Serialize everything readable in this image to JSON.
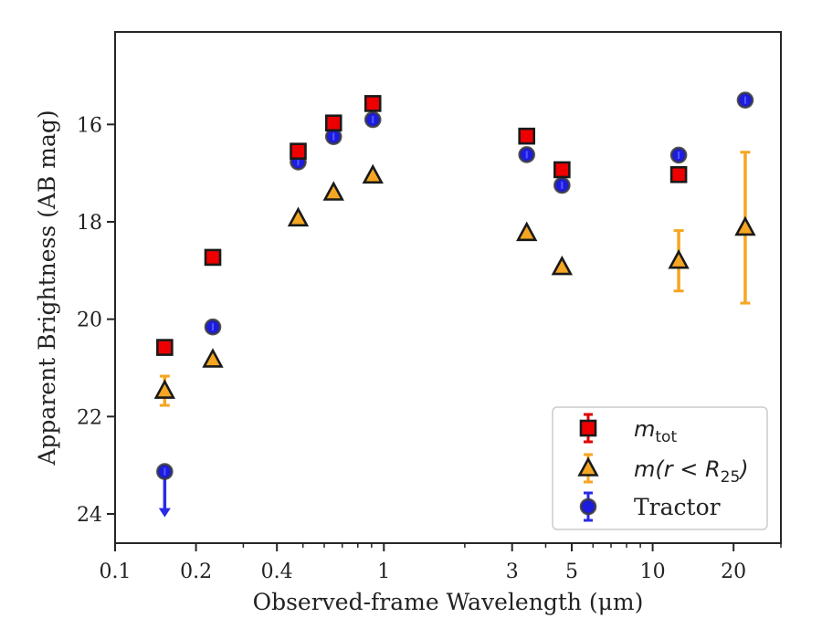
{
  "chart_data": {
    "type": "scatter",
    "xlabel": "Observed-frame Wavelength (μm)",
    "ylabel": "Apparent Brightness (AB mag)",
    "x_scale": "log",
    "y_inverted": true,
    "xlim": [
      0.1,
      30
    ],
    "ylim": [
      24.6,
      14.1
    ],
    "x_ticks": [
      {
        "value": 0.1,
        "label": "0.1"
      },
      {
        "value": 0.2,
        "label": "0.2"
      },
      {
        "value": 0.4,
        "label": "0.4"
      },
      {
        "value": 1,
        "label": "1"
      },
      {
        "value": 3,
        "label": "3"
      },
      {
        "value": 5,
        "label": "5"
      },
      {
        "value": 10,
        "label": "10"
      },
      {
        "value": 20,
        "label": "20"
      }
    ],
    "y_ticks": [
      {
        "value": 16,
        "label": "16"
      },
      {
        "value": 18,
        "label": "18"
      },
      {
        "value": 20,
        "label": "20"
      },
      {
        "value": 22,
        "label": "22"
      },
      {
        "value": 24,
        "label": "24"
      }
    ],
    "grid": false,
    "legend_position": "bottom-right",
    "series": [
      {
        "name": "m_tot",
        "legend_main": "m",
        "legend_sub": "tot",
        "marker": "square",
        "color": "#ee0000",
        "error_color": "#dd0000",
        "points": [
          {
            "x": 0.153,
            "y": 20.58
          },
          {
            "x": 0.231,
            "y": 18.73
          },
          {
            "x": 0.48,
            "y": 16.55
          },
          {
            "x": 0.65,
            "y": 15.97
          },
          {
            "x": 0.91,
            "y": 15.57
          },
          {
            "x": 3.4,
            "y": 16.24
          },
          {
            "x": 4.6,
            "y": 16.93
          },
          {
            "x": 12.5,
            "y": 17.03
          }
        ]
      },
      {
        "name": "m(r < R_25)",
        "legend_main": "m(r < R",
        "legend_sub": "25",
        "legend_tail": ")",
        "marker": "triangle",
        "color": "#f5a623",
        "error_color": "#f5a623",
        "points": [
          {
            "x": 0.153,
            "y": 21.47,
            "err": 0.3
          },
          {
            "x": 0.231,
            "y": 20.83
          },
          {
            "x": 0.48,
            "y": 17.93
          },
          {
            "x": 0.65,
            "y": 17.4
          },
          {
            "x": 0.91,
            "y": 17.05
          },
          {
            "x": 3.4,
            "y": 18.23
          },
          {
            "x": 4.6,
            "y": 18.93
          },
          {
            "x": 12.5,
            "y": 18.8,
            "err": 0.62
          },
          {
            "x": 22.1,
            "y": 18.12,
            "err": 1.55
          }
        ]
      },
      {
        "name": "Tractor",
        "marker": "circle",
        "color": "#1c1cdd",
        "error_color": "#2a2ae8",
        "points": [
          {
            "x": 0.153,
            "y": 23.13,
            "upper_limit": true
          },
          {
            "x": 0.231,
            "y": 20.16
          },
          {
            "x": 0.48,
            "y": 16.77
          },
          {
            "x": 0.65,
            "y": 16.25
          },
          {
            "x": 0.91,
            "y": 15.9
          },
          {
            "x": 3.4,
            "y": 16.62
          },
          {
            "x": 4.6,
            "y": 17.25
          },
          {
            "x": 12.5,
            "y": 16.63
          },
          {
            "x": 22.1,
            "y": 15.5
          }
        ]
      }
    ]
  }
}
